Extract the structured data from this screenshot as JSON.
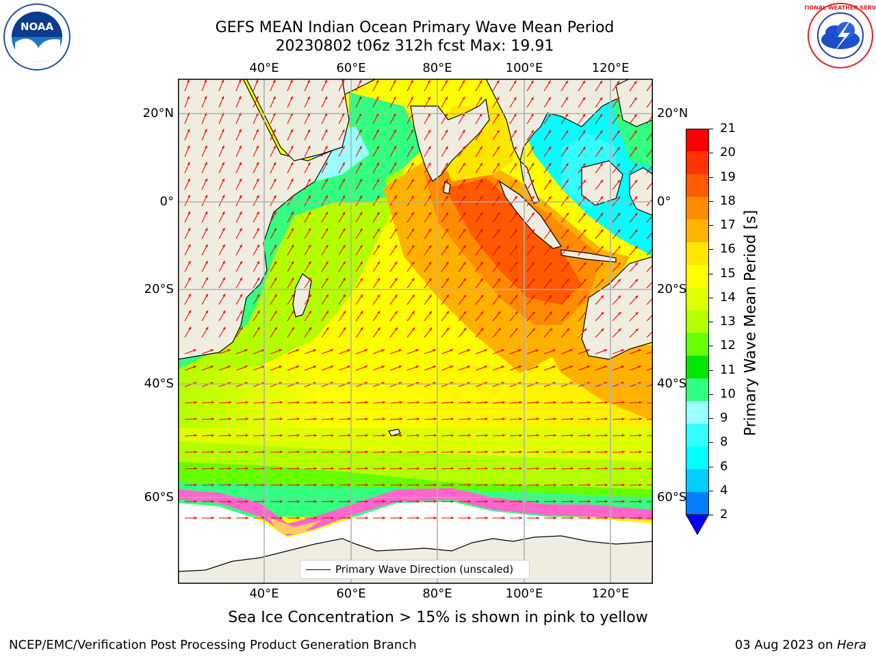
{
  "title_line1": "GEFS MEAN Indian Ocean Primary Wave Mean Period",
  "title_line2": "20230802 t06z 312h fcst   Max: 19.91",
  "logo_noaa": {
    "text": "NOAA",
    "ring_text": "NATIONAL OCEANIC AND ATMOSPHERIC ADMINISTRATION · U.S. DEPARTMENT OF COMMERCE",
    "icon": "noaa-logo"
  },
  "logo_nws": {
    "ring_text": "NATIONAL WEATHER SERVICE",
    "icon": "nws-logo"
  },
  "map": {
    "lon_ticks": [
      "40°E",
      "60°E",
      "80°E",
      "100°E",
      "120°E"
    ],
    "lat_ticks": [
      "20°N",
      "0°",
      "20°S",
      "40°S",
      "60°S"
    ],
    "lon_range": [
      20,
      130
    ],
    "lat_range": [
      -76,
      28
    ],
    "land_color": "#efeddf",
    "grid": true,
    "arrow_color": "#ff0000",
    "legend_label": "Primary Wave Direction (unscaled)"
  },
  "colorbar": {
    "label": "Primary Wave Mean Period [s]",
    "ticks": [
      "2",
      "4",
      "6",
      "8",
      "9",
      "10",
      "11",
      "12",
      "13",
      "14",
      "15",
      "16",
      "17",
      "18",
      "19",
      "20",
      "21"
    ],
    "colors": [
      "#0080ff",
      "#00ccff",
      "#00ffff",
      "#33ffff",
      "#99ffff",
      "#33ff80",
      "#00e600",
      "#66ff00",
      "#b3ff00",
      "#ddff00",
      "#ffff00",
      "#ffe600",
      "#ffb300",
      "#ff8c00",
      "#ff5a00",
      "#ff3300",
      "#ff0000"
    ],
    "extend_color": "#0000ff"
  },
  "note": "Sea Ice Concentration > 15% is shown in pink to yellow",
  "footer_left": "NCEP/EMC/Verification Post Processing Product Generation Branch",
  "footer_date": "03 Aug 2023 on ",
  "footer_host": "Hera"
}
